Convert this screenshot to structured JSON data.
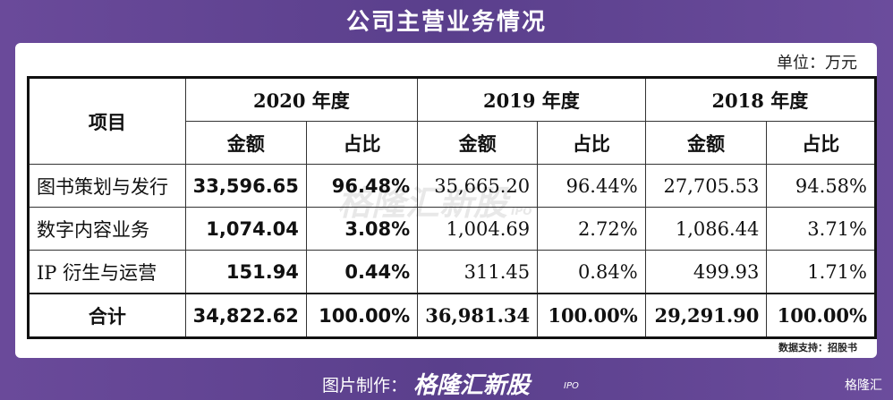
{
  "title": "公司主营业务情况",
  "unit": "单位：万元",
  "table": {
    "header": [
      "项目",
      "2020 年度",
      "2019 年度",
      "2018 年度"
    ],
    "subheader": [
      "金额",
      "占比",
      "金额",
      "占比",
      "金额",
      "占比"
    ],
    "rows": [
      [
        "图书策划与发行",
        "33,596.65",
        "96.48%",
        "35,665.20",
        "96.44%",
        "27,705.53",
        "94.58%"
      ],
      [
        "数字内容业务",
        "1,074.04",
        "3.08%",
        "1,004.69",
        "2.72%",
        "1,086.44",
        "3.71%"
      ],
      [
        "IP 衍生与运营",
        "151.94",
        "0.44%",
        "311.45",
        "0.84%",
        "499.93",
        "1.71%"
      ],
      [
        "合计",
        "34,822.62",
        "100.00%",
        "36,981.34",
        "100.00%",
        "29,291.90",
        "100.00%"
      ]
    ]
  },
  "watermark": {
    "brand": "格隆汇新股",
    "sub": "IPO"
  },
  "source": "数据支持：招股书",
  "footer": {
    "label": "图片制作：",
    "brand": "格隆汇新股",
    "brand_sub": "IPO",
    "logo": "格隆汇"
  }
}
